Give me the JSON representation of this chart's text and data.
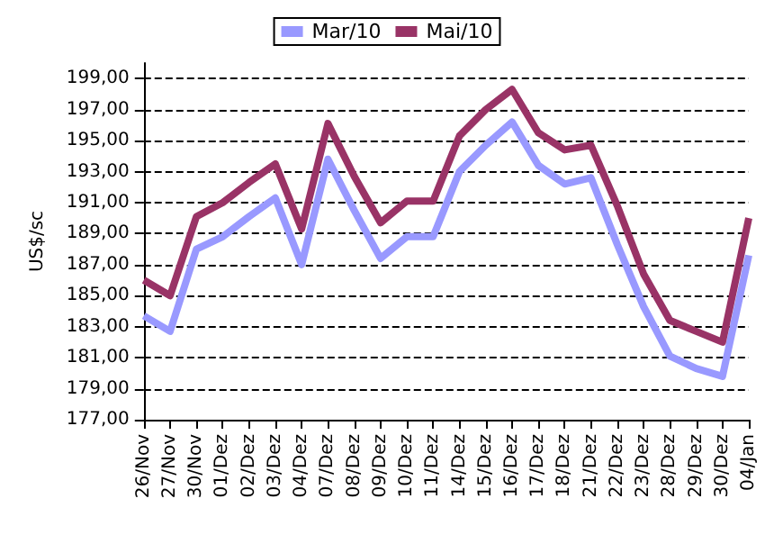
{
  "chart_data": {
    "type": "line",
    "ylabel": "US$/sc",
    "categories": [
      "26/Nov",
      "27/Nov",
      "30/Nov",
      "01/Dez",
      "02/Dez",
      "03/Dez",
      "04/Dez",
      "07/Dez",
      "08/Dez",
      "09/Dez",
      "10/Dez",
      "11/Dez",
      "14/Dez",
      "15/Dez",
      "16/Dez",
      "17/Dez",
      "18/Dez",
      "21/Dez",
      "22/Dez",
      "23/Dez",
      "28/Dez",
      "29/Dez",
      "30/Dez",
      "04/Jan"
    ],
    "series": [
      {
        "name": "Mar/10",
        "color": "#9999ff",
        "values": [
          183.7,
          182.7,
          188,
          188.8,
          190.1,
          191.3,
          187,
          193.8,
          190.5,
          187.4,
          188.8,
          188.8,
          193,
          194.7,
          196.2,
          193.4,
          192.2,
          192.6,
          188.3,
          184.3,
          181.1,
          180.3,
          179.8,
          187.6
        ]
      },
      {
        "name": "Mai/10",
        "color": "#993366",
        "values": [
          186,
          185,
          190.1,
          191,
          192.3,
          193.5,
          189.3,
          196.1,
          192.7,
          189.7,
          191.1,
          191.1,
          195.3,
          197,
          198.3,
          195.5,
          194.4,
          194.7,
          190.8,
          186.4,
          183.4,
          182.7,
          182,
          190
        ]
      }
    ],
    "ylim": [
      177,
      200
    ],
    "yticks": [
      {
        "value": 177,
        "label": "177,00"
      },
      {
        "value": 179,
        "label": "179,00"
      },
      {
        "value": 181,
        "label": "181,00"
      },
      {
        "value": 183,
        "label": "183,00"
      },
      {
        "value": 185,
        "label": "185,00"
      },
      {
        "value": 187,
        "label": "187,00"
      },
      {
        "value": 189,
        "label": "189,00"
      },
      {
        "value": 191,
        "label": "191,00"
      },
      {
        "value": 193,
        "label": "193,00"
      },
      {
        "value": 195,
        "label": "195,00"
      },
      {
        "value": 197,
        "label": "197,00"
      },
      {
        "value": 199,
        "label": "199,00"
      }
    ],
    "grid": "y",
    "legend": "top",
    "marker": "none",
    "line_style": "solid"
  }
}
